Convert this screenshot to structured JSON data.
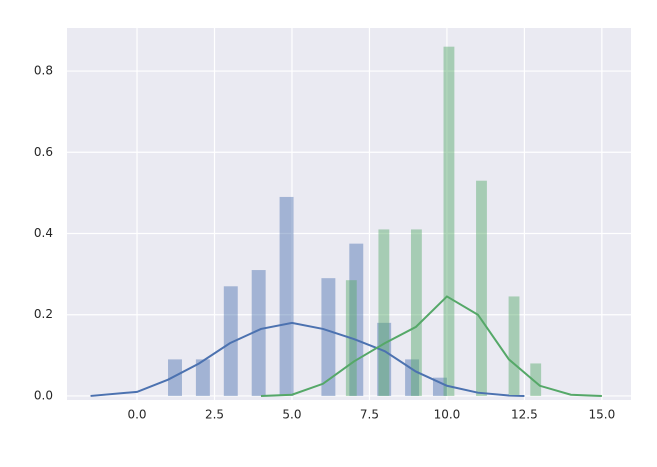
{
  "chart_data": {
    "type": "histogram",
    "xlim": [
      -2.26,
      15.94
    ],
    "ylim": [
      -0.01,
      0.906
    ],
    "xticks": [
      {
        "value": 0,
        "label": "0.0"
      },
      2.5,
      {
        "value": 5,
        "label": "5.0"
      },
      7.5,
      {
        "value": 10,
        "label": "10.0"
      },
      12.5,
      {
        "value": 15,
        "label": "15.0"
      }
    ],
    "yticks": [
      {
        "value": 0,
        "label": "0.0"
      },
      0.2,
      0.4,
      0.6,
      0.8
    ],
    "grid": true,
    "series": [
      {
        "color": "#4c72b0",
        "bins": [
          1.0,
          1.45,
          1.9,
          2.35,
          2.8,
          3.25,
          3.7,
          4.15,
          4.6,
          5.05,
          5.5,
          5.95,
          6.4,
          6.85,
          7.3,
          7.75,
          8.2,
          8.65,
          9.1,
          9.55,
          10.0
        ],
        "values": [
          0.09,
          0,
          0.09,
          0,
          0.27,
          0,
          0.31,
          0,
          0.49,
          0,
          0,
          0.29,
          0,
          0.375,
          0,
          0.18,
          0,
          0.09,
          0,
          0.045
        ],
        "kde_x": [
          -1.5,
          0,
          1,
          2,
          3,
          4,
          5,
          6,
          7,
          8,
          9,
          10,
          11,
          12,
          12.5
        ],
        "kde_y": [
          0,
          0.01,
          0.04,
          0.08,
          0.13,
          0.165,
          0.18,
          0.165,
          0.14,
          0.11,
          0.06,
          0.025,
          0.008,
          0.001,
          0
        ]
      },
      {
        "color": "#55a868",
        "bins": [
          6.74,
          7.09,
          7.44,
          7.79,
          8.14,
          8.49,
          8.84,
          9.19,
          9.54,
          9.89,
          10.24,
          10.59,
          10.94,
          11.29,
          11.64,
          11.99,
          12.34,
          12.69,
          13.04
        ],
        "values": [
          0.285,
          0,
          0,
          0.41,
          0,
          0,
          0.41,
          0,
          0,
          0.86,
          0,
          0,
          0.53,
          0,
          0,
          0.245,
          0,
          0.08
        ],
        "kde_x": [
          4,
          5,
          6,
          7,
          8,
          9,
          10,
          11,
          12,
          13,
          14,
          15
        ],
        "kde_y": [
          0,
          0.003,
          0.03,
          0.085,
          0.13,
          0.17,
          0.245,
          0.2,
          0.09,
          0.025,
          0.003,
          0
        ]
      }
    ]
  }
}
